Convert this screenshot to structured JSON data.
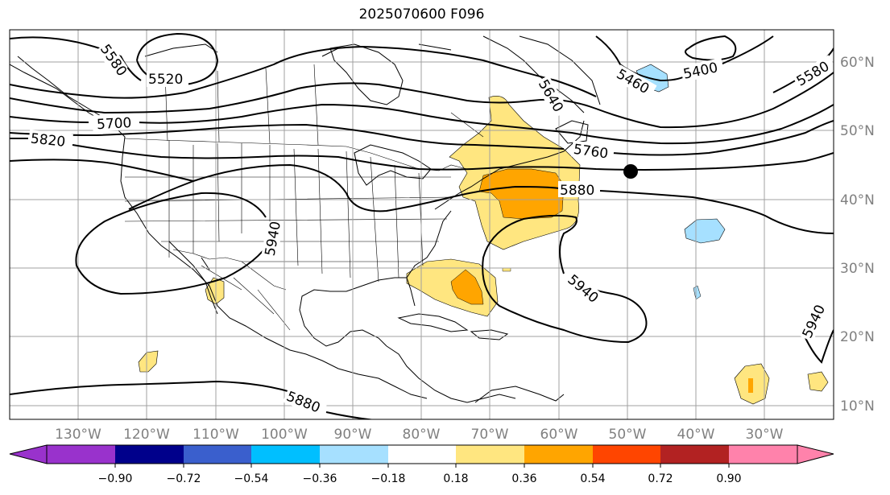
{
  "title": "2025070600 F096",
  "map": {
    "lon_labels": [
      "130°W",
      "120°W",
      "110°W",
      "100°W",
      "90°W",
      "80°W",
      "70°W",
      "60°W",
      "50°W",
      "40°W",
      "30°W"
    ],
    "lat_labels": [
      "60°N",
      "50°N",
      "40°N",
      "30°N",
      "20°N",
      "10°N"
    ],
    "grid_color": "#a0a0a0",
    "contour_labels": [
      "5580",
      "5520",
      "5700",
      "5820",
      "5940",
      "5880",
      "5760",
      "5640",
      "5460",
      "5400",
      "5580",
      "5940",
      "5940",
      "5880"
    ],
    "contour_levels": [
      "5400",
      "5460",
      "5520",
      "5580",
      "5640",
      "5700",
      "5760",
      "5820",
      "5880",
      "5940"
    ],
    "marker": {
      "lon": -50,
      "lat": 44,
      "symbol": "black-dot"
    }
  },
  "colorbar": {
    "ticks": [
      "−0.90",
      "−0.72",
      "−0.54",
      "−0.36",
      "−0.18",
      "0.18",
      "0.36",
      "0.54",
      "0.72",
      "0.90"
    ],
    "colors": [
      "#9932cc",
      "#00008b",
      "#3a5fcd",
      "#00bfff",
      "#a6e0ff",
      "#ffffff",
      "#ffe680",
      "#ffa500",
      "#ff4500",
      "#b22222",
      "#ff82ab"
    ],
    "extend": "both"
  }
}
